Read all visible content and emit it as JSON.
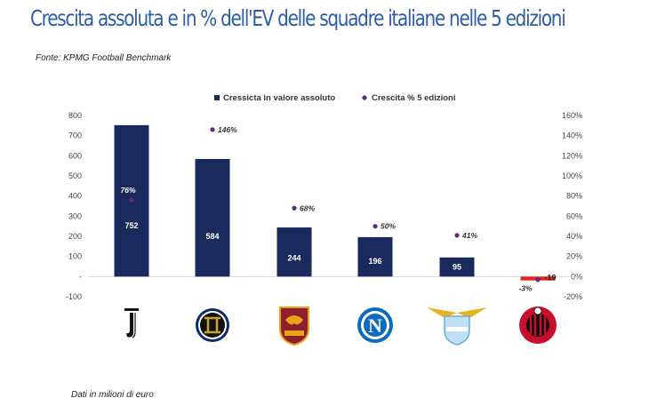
{
  "header": {
    "title": "Crescita assoluta e in % dell'EV delle squadre italiane nelle 5 edizioni",
    "source": "Fonte: KPMG Football Benchmark",
    "footnote": "Dati in milioni di euro"
  },
  "colors": {
    "title": "#2e5ea8",
    "bar": "#1b2a5c",
    "bar_negative": "#e8221c",
    "dot": "#5b2d7a"
  },
  "chart_data": {
    "type": "bar",
    "categories": [
      "Juventus",
      "Inter",
      "Roma",
      "Napoli",
      "Lazio",
      "Milan"
    ],
    "logo_icons": [
      "juventus-logo-icon",
      "inter-logo-icon",
      "roma-logo-icon",
      "napoli-logo-icon",
      "lazio-logo-icon",
      "milan-logo-icon"
    ],
    "series": [
      {
        "name": "Cressicta in valore assoluto",
        "type": "bar",
        "axis": "left",
        "values": [
          752,
          584,
          244,
          196,
          95,
          -19
        ],
        "labels": [
          "752",
          "584",
          "244",
          "196",
          "95",
          "-19"
        ]
      },
      {
        "name": "Crescita % 5 edizioni",
        "type": "scatter",
        "axis": "right",
        "values": [
          76,
          146,
          68,
          50,
          41,
          -3
        ],
        "labels": [
          "76%",
          "146%",
          "68%",
          "50%",
          "41%",
          "-3%"
        ]
      }
    ],
    "ylim_left": [
      -100,
      800
    ],
    "ylim_right": [
      -20,
      160
    ],
    "yticks_left": [
      "-100",
      "-",
      "100",
      "200",
      "300",
      "400",
      "500",
      "600",
      "700",
      "800"
    ],
    "yticks_right": [
      "-20%",
      "0%",
      "20%",
      "40%",
      "60%",
      "80%",
      "100%",
      "120%",
      "140%",
      "160%"
    ],
    "legend_position": "top-center",
    "grid": false
  }
}
